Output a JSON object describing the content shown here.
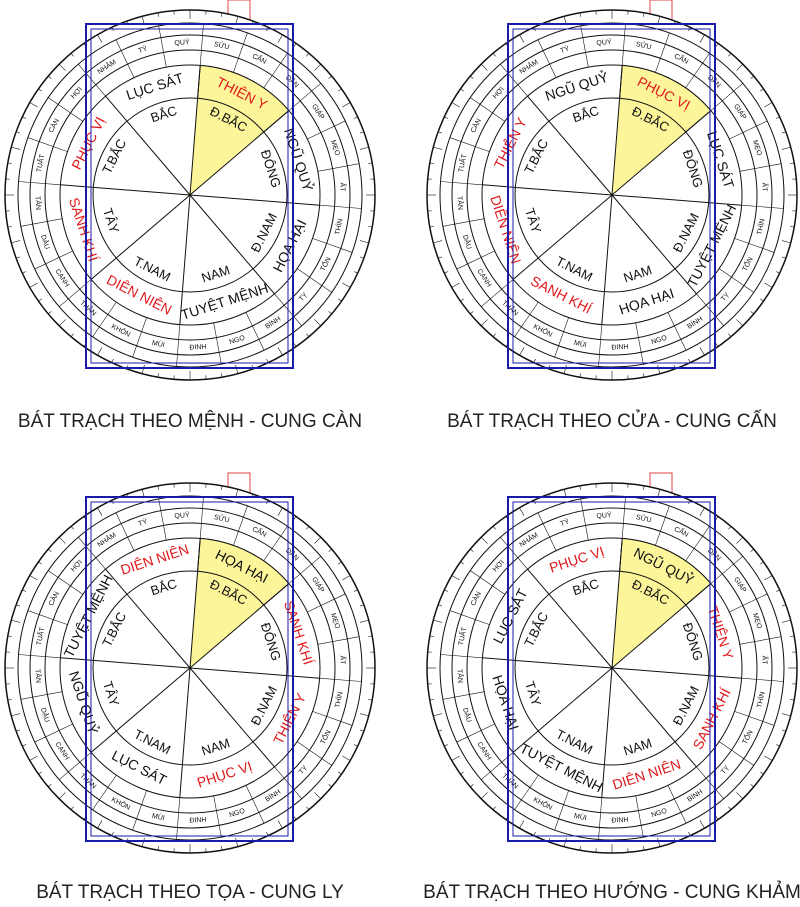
{
  "wheels": [
    {
      "caption": "BÁT TRẠCH THEO MỆNH - CUNG CÀN",
      "sectors": [
        {
          "direction": "BẮC",
          "star": "LỤC SÁT",
          "star_color": "#111111"
        },
        {
          "direction": "Đ.BẮC",
          "star": "THIÊN Y",
          "star_color": "#e0191b"
        },
        {
          "direction": "ĐÔNG",
          "star": "NGŨ QUỶ",
          "star_color": "#111111"
        },
        {
          "direction": "Đ.NAM",
          "star": "HỌA HẠI",
          "star_color": "#111111"
        },
        {
          "direction": "NAM",
          "star": "TUYỆT MỆNH",
          "star_color": "#111111"
        },
        {
          "direction": "T.NAM",
          "star": "DIÊN NIÊN",
          "star_color": "#e0191b"
        },
        {
          "direction": "TÂY",
          "star": "SANH KHÍ",
          "star_color": "#e0191b"
        },
        {
          "direction": "T.BẮC",
          "star": "PHỤC VỊ",
          "star_color": "#e0191b"
        }
      ]
    },
    {
      "caption": "BÁT TRẠCH THEO CỬA - CUNG CẤN",
      "sectors": [
        {
          "direction": "BẮC",
          "star": "NGŨ QUỶ",
          "star_color": "#111111"
        },
        {
          "direction": "Đ.BẮC",
          "star": "PHỤC VỊ",
          "star_color": "#e0191b"
        },
        {
          "direction": "ĐÔNG",
          "star": "LỤC SÁT",
          "star_color": "#111111"
        },
        {
          "direction": "Đ.NAM",
          "star": "TUYỆT MỆNH",
          "star_color": "#111111"
        },
        {
          "direction": "NAM",
          "star": "HỌA HẠI",
          "star_color": "#111111"
        },
        {
          "direction": "T.NAM",
          "star": "SANH KHÍ",
          "star_color": "#e0191b"
        },
        {
          "direction": "TÂY",
          "star": "DIÊN NIÊN",
          "star_color": "#e0191b"
        },
        {
          "direction": "T.BẮC",
          "star": "THIÊN Y",
          "star_color": "#e0191b"
        }
      ]
    },
    {
      "caption": "BÁT TRẠCH THEO TỌA - CUNG LY",
      "sectors": [
        {
          "direction": "BẮC",
          "star": "DIÊN NIÊN",
          "star_color": "#e0191b"
        },
        {
          "direction": "Đ.BẮC",
          "star": "HỌA HẠI",
          "star_color": "#111111"
        },
        {
          "direction": "ĐÔNG",
          "star": "SANH KHÍ",
          "star_color": "#e0191b"
        },
        {
          "direction": "Đ.NAM",
          "star": "THIÊN Y",
          "star_color": "#e0191b"
        },
        {
          "direction": "NAM",
          "star": "PHỤC VỊ",
          "star_color": "#e0191b"
        },
        {
          "direction": "T.NAM",
          "star": "LỤC SÁT",
          "star_color": "#111111"
        },
        {
          "direction": "TÂY",
          "star": "NGŨ QUỶ",
          "star_color": "#111111"
        },
        {
          "direction": "T.BẮC",
          "star": "TUYỆT MỆNH",
          "star_color": "#111111"
        }
      ]
    },
    {
      "caption": "BÁT TRẠCH THEO HƯỚNG - CUNG KHẢM",
      "sectors": [
        {
          "direction": "BẮC",
          "star": "PHỤC VỊ",
          "star_color": "#e0191b"
        },
        {
          "direction": "Đ.BẮC",
          "star": "NGŨ QUỶ",
          "star_color": "#111111"
        },
        {
          "direction": "ĐÔNG",
          "star": "THIÊN Y",
          "star_color": "#e0191b"
        },
        {
          "direction": "Đ.NAM",
          "star": "SANH KHÍ",
          "star_color": "#e0191b"
        },
        {
          "direction": "NAM",
          "star": "DIÊN NIÊN",
          "star_color": "#e0191b"
        },
        {
          "direction": "T.NAM",
          "star": "TUYỆT MỆNH",
          "star_color": "#111111"
        },
        {
          "direction": "TÂY",
          "star": "HỌA HẠI",
          "star_color": "#111111"
        },
        {
          "direction": "T.BẮC",
          "star": "LỤC SÁT",
          "star_color": "#111111"
        }
      ]
    }
  ],
  "mountains": [
    "TÝ",
    "QUÝ",
    "SỬU",
    "CẤN",
    "DẦN",
    "GIÁP",
    "MẸO",
    "ẤT",
    "THÌN",
    "TỐN",
    "TỴ",
    "BÍNH",
    "NGỌ",
    "ĐINH",
    "MÙI",
    "KHÔN",
    "THÂN",
    "CANH",
    "DẬU",
    "TÂN",
    "TUẤT",
    "CÀN",
    "HỢI",
    "NHÂM"
  ]
}
